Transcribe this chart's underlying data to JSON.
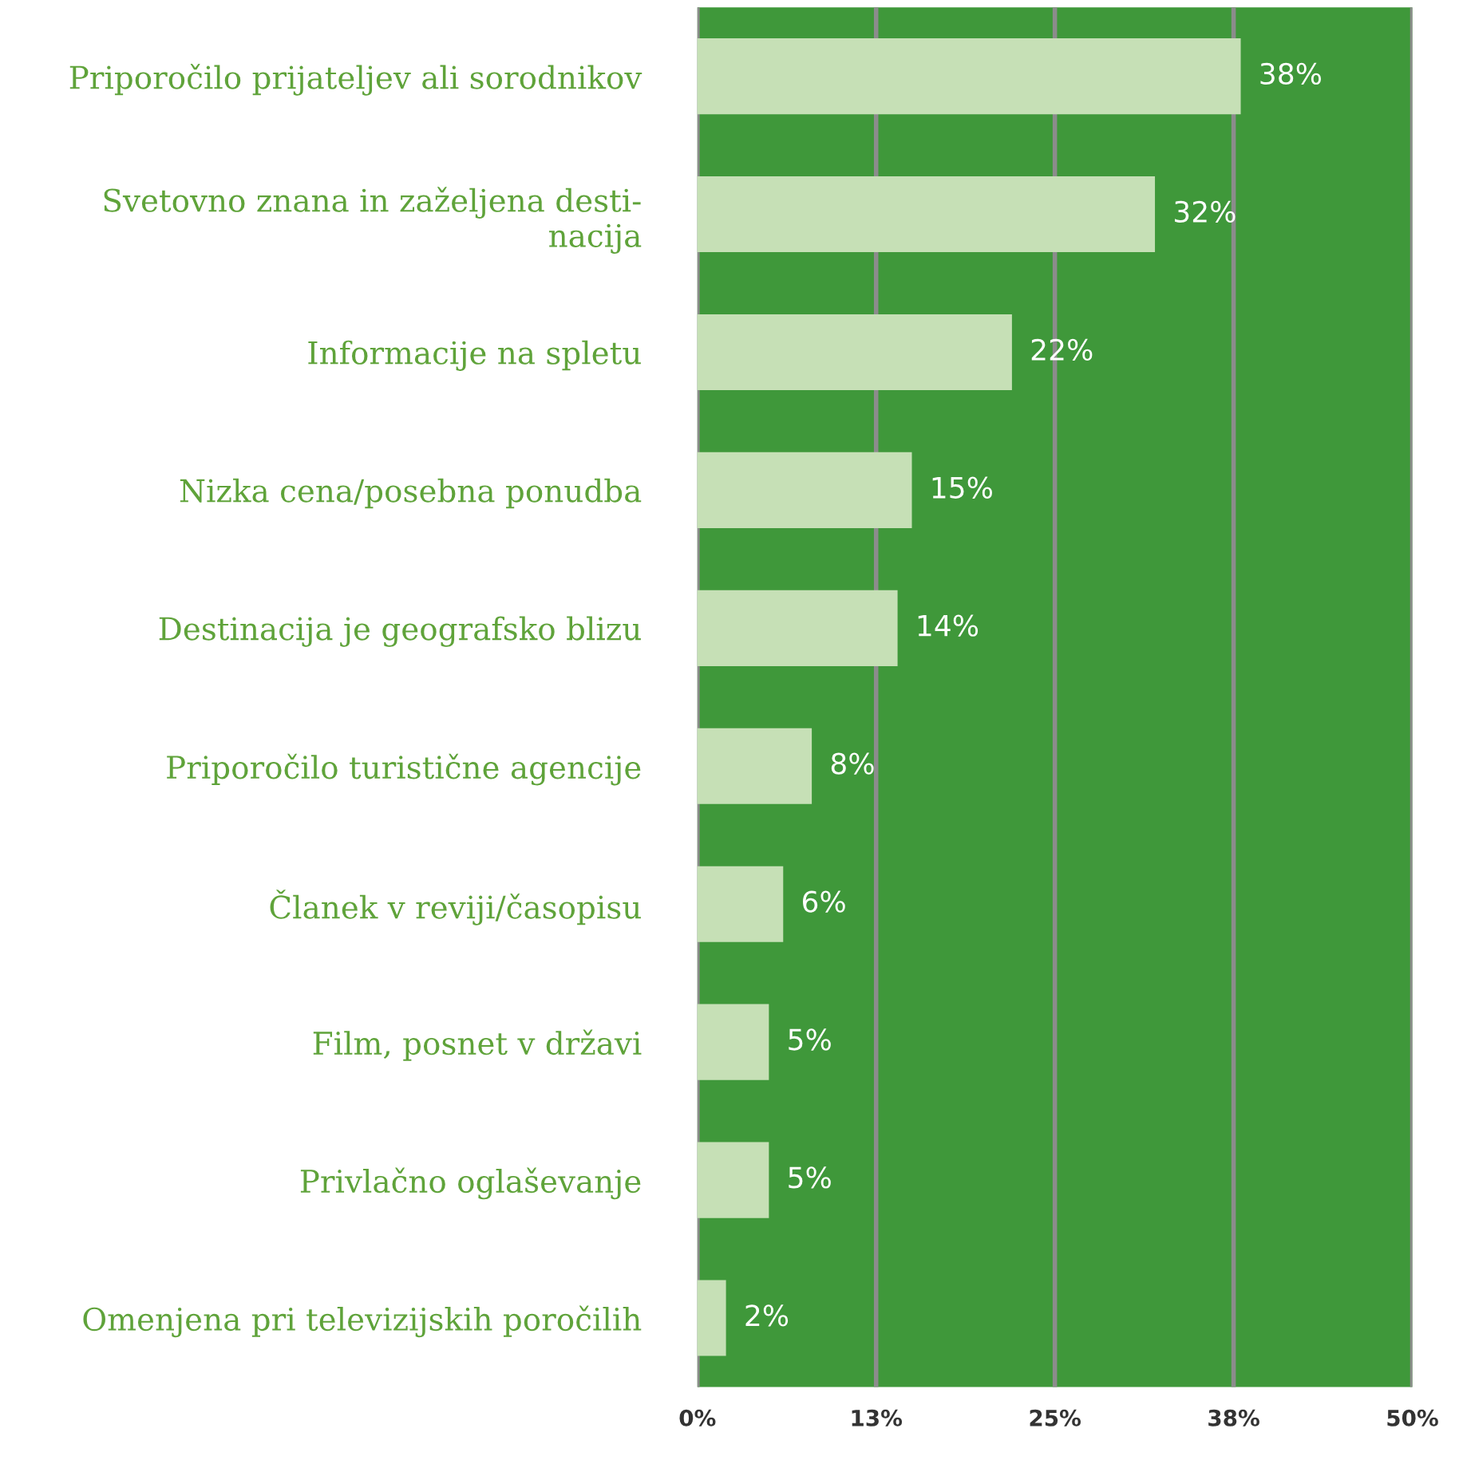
{
  "chart_data": {
    "type": "bar",
    "orientation": "horizontal",
    "categories": [
      "Priporočilo prijateljev ali sorodnikov",
      "Svetovno znana in zaželjena desti-\nnacija",
      "Informacije na spletu",
      "Nizka cena/posebna ponudba",
      "Destinacija je geografsko blizu",
      "Priporočilo turistične agencije",
      "Članek v reviji/časopisu",
      "Film, posnet v državi",
      "Privlačno oglaševanje",
      "Omenjena pri televizijskih poročilih"
    ],
    "values": [
      38,
      32,
      22,
      15,
      14,
      8,
      6,
      5,
      5,
      2
    ],
    "value_labels": [
      "38%",
      "32%",
      "22%",
      "15%",
      "14%",
      "8%",
      "6%",
      "5%",
      "5%",
      "2%"
    ],
    "color": "#c6e0b6",
    "xlim": [
      0,
      50
    ],
    "xticks": [
      {
        "value": 0,
        "label": "0%"
      },
      {
        "value": 12.5,
        "label": "13%"
      },
      {
        "value": 25,
        "label": "25%"
      },
      {
        "value": 37.5,
        "label": "38%"
      },
      {
        "value": 50,
        "label": "50%"
      }
    ],
    "grid": "x"
  }
}
